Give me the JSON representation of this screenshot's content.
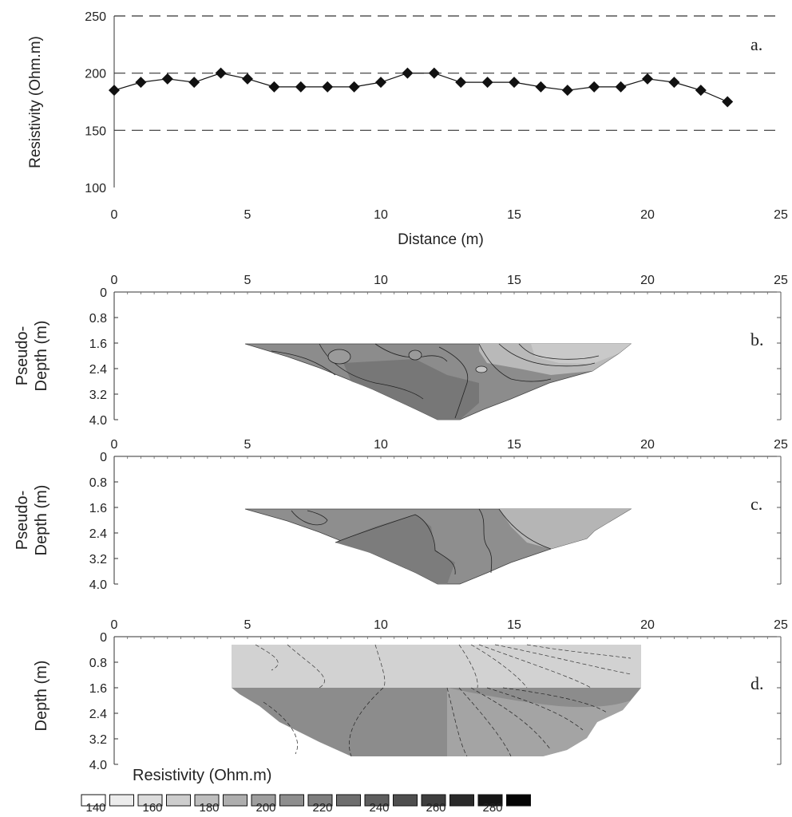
{
  "chart_data": [
    {
      "id": "a",
      "type": "line",
      "panel_label": "a.",
      "xlabel": "Distance (m)",
      "ylabel": "Resistivity (Ohm.m)",
      "xlim": [
        0,
        25
      ],
      "ylim": [
        100,
        250
      ],
      "xticks": [
        "0",
        "5",
        "10",
        "15",
        "20",
        "25"
      ],
      "yticks": [
        "100",
        "150",
        "200",
        "250"
      ],
      "gridlines_y": [
        150,
        200,
        250
      ],
      "x": [
        0,
        1,
        2,
        3,
        4,
        5,
        6,
        7,
        8,
        9,
        10,
        11,
        12,
        13,
        14,
        15,
        16,
        17,
        18,
        19,
        20,
        21,
        22,
        23
      ],
      "y": [
        185,
        192,
        195,
        192,
        200,
        195,
        188,
        188,
        188,
        188,
        192,
        200,
        200,
        192,
        192,
        192,
        188,
        185,
        188,
        188,
        195,
        192,
        185,
        175
      ]
    },
    {
      "id": "b",
      "type": "heatmap",
      "panel_label": "b.",
      "ylabel_lines": [
        "Pseudo-",
        "Depth (m)"
      ],
      "xticks": [
        "0",
        "5",
        "10",
        "15",
        "20",
        "25"
      ],
      "yticks": [
        "0",
        "0.8",
        "1.6",
        "2.4",
        "3.2",
        "4.0"
      ],
      "xlim": [
        0,
        25
      ],
      "ylim": [
        0,
        4.0
      ]
    },
    {
      "id": "c",
      "type": "heatmap",
      "panel_label": "c.",
      "ylabel_lines": [
        "Pseudo-",
        "Depth (m)"
      ],
      "xticks": [
        "0",
        "5",
        "10",
        "15",
        "20",
        "25"
      ],
      "yticks": [
        "0",
        "0.8",
        "1.6",
        "2.4",
        "3.2",
        "4.0"
      ],
      "xlim": [
        0,
        25
      ],
      "ylim": [
        0,
        4.0
      ]
    },
    {
      "id": "d",
      "type": "heatmap",
      "panel_label": "d.",
      "ylabel": "Depth (m)",
      "xticks": [
        "0",
        "5",
        "10",
        "15",
        "20",
        "25"
      ],
      "yticks": [
        "0",
        "0.8",
        "1.6",
        "2.4",
        "3.2",
        "4.0"
      ],
      "xlim": [
        0,
        25
      ],
      "ylim": [
        0,
        4.0
      ]
    }
  ],
  "legend": {
    "title": "Resistivity (Ohm.m)",
    "labels": [
      "140",
      "160",
      "180",
      "200",
      "220",
      "240",
      "260",
      "280"
    ],
    "colors": [
      "#ffffff",
      "#ececec",
      "#dcdcdc",
      "#cdcdcd",
      "#bebebe",
      "#aeaeae",
      "#9e9e9e",
      "#8e8e8e",
      "#7e7e7e",
      "#6e6e6e",
      "#5e5e5e",
      "#4e4e4e",
      "#3e3e3e",
      "#2a2a2a",
      "#161616",
      "#050505"
    ]
  }
}
